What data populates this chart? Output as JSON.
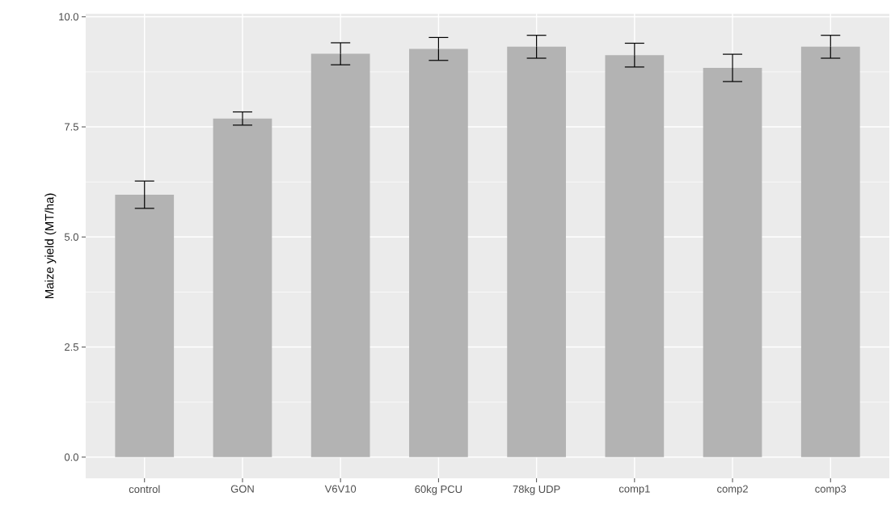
{
  "chart_data": {
    "type": "bar",
    "ylabel": "Maize yield (MT/ha)",
    "categories": [
      "control",
      "GON",
      "V6V10",
      "60kg PCU",
      "78kg UDP",
      "comp1",
      "comp2",
      "comp3"
    ],
    "values": [
      5.96,
      7.69,
      9.16,
      9.27,
      9.32,
      9.13,
      8.84,
      9.32
    ],
    "errors": [
      0.31,
      0.15,
      0.25,
      0.26,
      0.26,
      0.27,
      0.31,
      0.26
    ],
    "color": "#b3b3b3",
    "ylim": [
      -0.48,
      10.07
    ],
    "yticks": [
      {
        "value": 0,
        "label": "0.0"
      },
      {
        "value": 2.5,
        "label": "2.5"
      },
      {
        "value": 5,
        "label": "5.0"
      },
      {
        "value": 7.5,
        "label": "7.5"
      },
      {
        "value": 10,
        "label": "10.0"
      }
    ],
    "grid": true
  }
}
